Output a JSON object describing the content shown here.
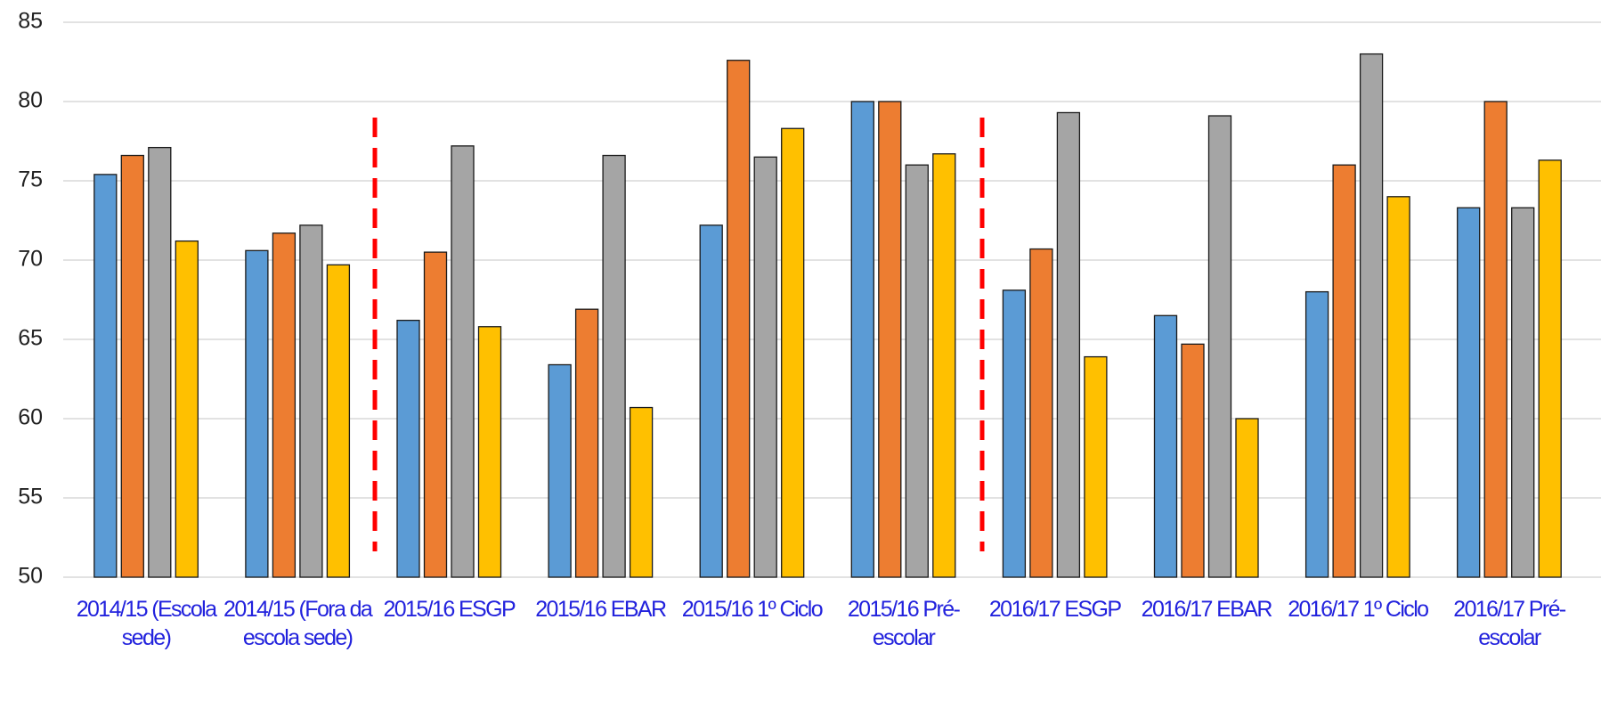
{
  "chart_data": {
    "type": "bar",
    "categories": [
      "2014/15 (Escola sede)",
      "2014/15 (Fora da escola sede)",
      "2015/16 ESGP",
      "2015/16 EBAR",
      "2015/16 1º Ciclo",
      "2015/16 Pré-escolar",
      "2016/17 ESGP",
      "2016/17 EBAR",
      "2016/17 1º Ciclo",
      "2016/17 Pré-escolar"
    ],
    "series": [
      {
        "color": "#5b9bd5",
        "values": [
          75.4,
          70.6,
          66.2,
          63.4,
          72.2,
          80.0,
          68.1,
          66.5,
          68.0,
          73.3
        ]
      },
      {
        "color": "#ed7d31",
        "values": [
          76.6,
          71.7,
          70.5,
          66.9,
          82.6,
          80.0,
          70.7,
          64.7,
          76.0,
          80.0
        ]
      },
      {
        "color": "#a5a5a5",
        "values": [
          77.1,
          72.2,
          77.2,
          76.6,
          76.5,
          76.0,
          79.3,
          79.1,
          83.0,
          73.3
        ]
      },
      {
        "color": "#ffc000",
        "values": [
          71.2,
          69.7,
          65.8,
          60.7,
          78.3,
          76.7,
          63.9,
          60.0,
          74.0,
          76.3
        ]
      }
    ],
    "ylim": [
      50,
      85
    ],
    "yticks": [
      50,
      55,
      60,
      65,
      70,
      75,
      80,
      85
    ],
    "grid": true
  }
}
